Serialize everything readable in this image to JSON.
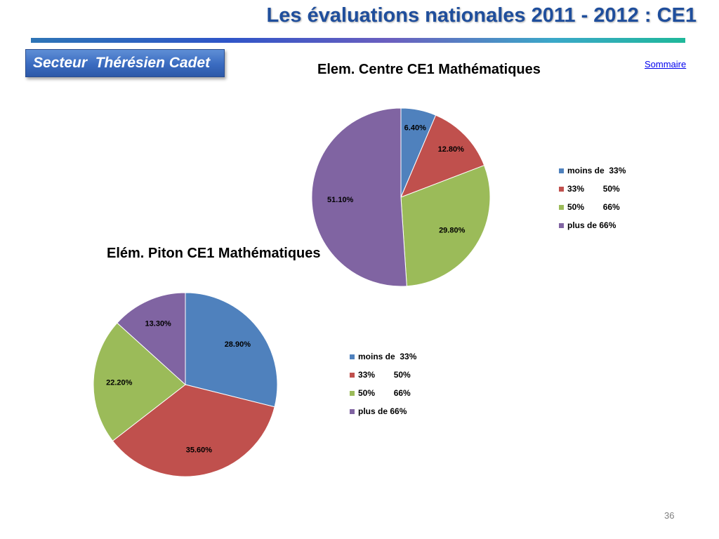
{
  "header": {
    "title": "Les évaluations nationales 2011 - 2012 : CE1"
  },
  "sector": {
    "label": "Secteur  Thérésien Cadet"
  },
  "summary_link": {
    "label": "Sommaire"
  },
  "page": {
    "number": "36"
  },
  "chart_data": [
    {
      "type": "pie",
      "title": "Elem. Centre CE1 Mathématiques",
      "categories": [
        "moins de  33%",
        "33%        50%",
        "50%        66%",
        "plus de 66%"
      ],
      "values": [
        6.4,
        12.8,
        29.8,
        51.1
      ],
      "data_labels": [
        "6.40%",
        "12.80%",
        "29.80%",
        "51.10%"
      ],
      "colors": [
        "#4f81bd",
        "#c0504d",
        "#9bbb59",
        "#8064a2"
      ],
      "legend_position": "right"
    },
    {
      "type": "pie",
      "title": "Elém. Piton CE1 Mathématiques",
      "categories": [
        "moins de  33%",
        "33%        50%",
        "50%        66%",
        "plus de 66%"
      ],
      "values": [
        28.9,
        35.6,
        22.2,
        13.3
      ],
      "data_labels": [
        "28.90%",
        "35.60%",
        "22.20%",
        "13.30%"
      ],
      "colors": [
        "#4f81bd",
        "#c0504d",
        "#9bbb59",
        "#8064a2"
      ],
      "legend_position": "right"
    }
  ]
}
